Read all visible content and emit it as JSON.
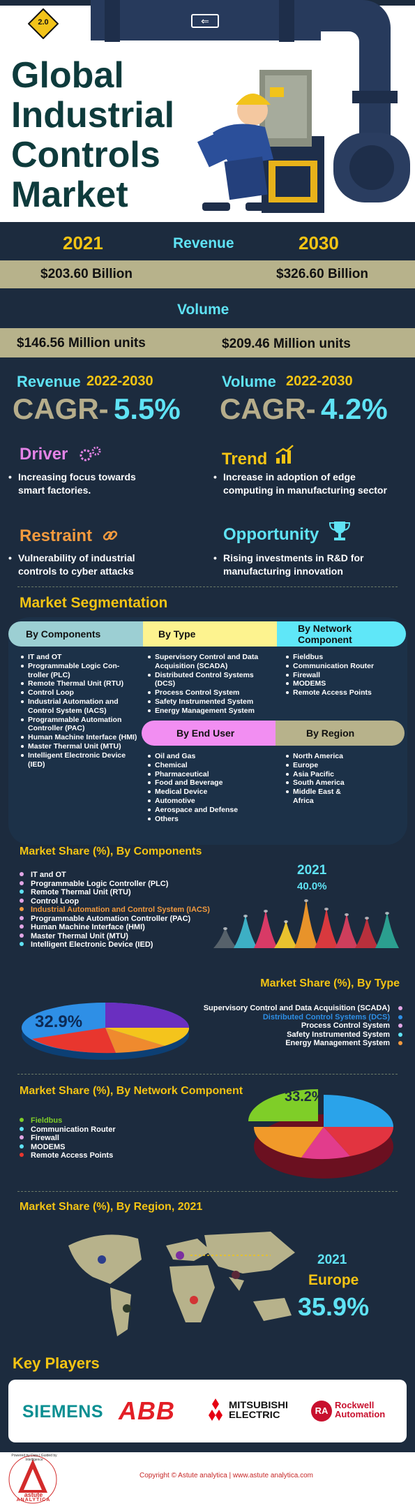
{
  "hero": {
    "title_lines": [
      "Global",
      "Industrial",
      "Controls",
      "Market"
    ],
    "badge": "2.0",
    "arrow_sign": "⇐"
  },
  "revenue": {
    "year_start": "2021",
    "label": "Revenue",
    "year_end": "2030",
    "value_start": "$203.60 Billion",
    "value_end": "$326.60 Billion"
  },
  "volume": {
    "label": "Volume",
    "value_start": "$146.56 Million units",
    "value_end": "$209.46 Million units"
  },
  "cagr": {
    "revenue_label": "Revenue",
    "revenue_period": "2022-2030",
    "revenue_prefix": "CAGR-",
    "revenue_value": "5.5%",
    "volume_label": "Volume",
    "volume_period": "2022-2030",
    "volume_prefix": "CAGR-",
    "volume_value": "4.2%"
  },
  "dynamics": {
    "driver": {
      "title": "Driver",
      "text": "Increasing focus towards smart factories."
    },
    "trend": {
      "title": "Trend",
      "text": "Increase in adoption of edge computing in manufacturing sector"
    },
    "restraint": {
      "title": "Restraint",
      "text": "Vulnerability of industrial controls to cyber attacks"
    },
    "opportunity": {
      "title": "Opportunity",
      "text": "Rising investments in R&D for manufacturing innovation"
    }
  },
  "segmentation": {
    "title": "Market Segmentation",
    "components": {
      "title": "By Components",
      "items": [
        "IT and OT",
        "Programmable Logic Con-troller (PLC)",
        "Remote Thermal Unit (RTU)",
        "Control Loop",
        "Industrial Automation and Control System (IACS)",
        "Programmable Automation Controller (PAC)",
        "Human Machine Interface (HMI)",
        "Master Thermal Unit (MTU)",
        "Intelligent Electronic Device (IED)"
      ]
    },
    "type": {
      "title": "By Type",
      "items": [
        "Supervisory Control and Data Acquisition (SCADA)",
        "Distributed Control Systems (DCS)",
        "Process Control System",
        "Safety Instrumented System",
        "Energy Management System"
      ]
    },
    "network": {
      "title": "By Network Component",
      "items": [
        "Fieldbus",
        "Communication Router",
        "Firewall",
        "MODEMS",
        "Remote Access Points"
      ]
    },
    "end_user": {
      "title": "By End User",
      "items": [
        "Oil and Gas",
        "Chemical",
        "Pharmaceutical",
        "Food and Beverage",
        "Medical Device",
        "Automotive",
        "Aerospace and Defense",
        "Others"
      ]
    },
    "region": {
      "title": "By Region",
      "items": [
        "North America",
        "Europe",
        "Asia Pacific",
        "South America",
        "Middle East & Africa"
      ]
    }
  },
  "share_components": {
    "title": "Market Share (%), By Components",
    "items": [
      "IT and OT",
      "Programmable Logic Controller (PLC)",
      "Remote Thermal Unit (RTU)",
      "Control Loop",
      "Industrial Automation and Control System (IACS)",
      "Programmable Automation Controller (PAC)",
      "Human Machine Interface (HMI)",
      "Master Thermal Unit (MTU)",
      "Intelligent Electronic Device (IED)"
    ],
    "highlight_index": 4,
    "year": "2021",
    "value": "40.0%",
    "cone_colors": [
      "#56616a",
      "#3dafc4",
      "#d83a66",
      "#e8c22e",
      "#e8932a",
      "#d8393e",
      "#ce3e5c",
      "#b8303c",
      "#2b9f8f"
    ]
  },
  "share_type": {
    "title": "Market Share (%), By Type",
    "items": [
      "Supervisory Control and Data Acquisition (SCADA)",
      "Distributed Control Systems (DCS)",
      "Process Control System",
      "Safety Instrumented System",
      "Energy Management System"
    ],
    "highlight_index": 1,
    "value": "32.9%",
    "colors": [
      "#6a2fc0",
      "#2e8fe6",
      "#e8362e",
      "#f4c41c",
      "#ef8a2e"
    ]
  },
  "share_network": {
    "title": "Market Share (%), By Network Component",
    "items": [
      "Fieldbus",
      "Communication Router",
      "Firewall",
      "MODEMS",
      "Remote Access Points"
    ],
    "highlight_index": 0,
    "value": "33.2%",
    "colors": [
      "#7fce28",
      "#2aa3ea",
      "#e23440",
      "#f19a2a",
      "#e23c8c"
    ]
  },
  "share_region": {
    "title": "Market Share (%), By Region, 2021",
    "year": "2021",
    "region": "Europe",
    "value": "35.9%"
  },
  "key_players": {
    "title": "Key Players",
    "logos": [
      "SIEMENS",
      "ABB",
      "MITSUBISHI",
      "ELECTRIC",
      "Rockwell",
      "Automation",
      "RA"
    ]
  },
  "footer": {
    "copyright": "Copyright © Astute analytica | www.astute analytica.com",
    "logo_ring_text": "Powered by Data | Guided by Intelligence",
    "logo_name": "astute",
    "logo_sub": "ANALYTICA"
  }
}
